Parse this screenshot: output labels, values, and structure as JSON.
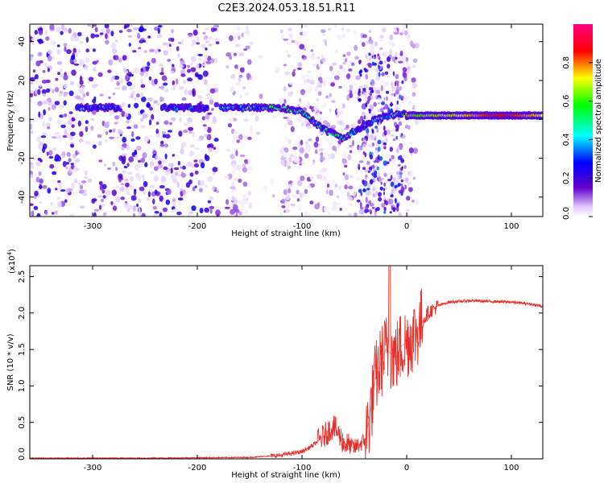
{
  "figure_title": "C2E3.2024.053.18.51.R11",
  "chart_data": [
    {
      "type": "heatmap",
      "title": "",
      "xlabel": "Height of straight line (km)",
      "ylabel": "Frequency (Hz)",
      "xlim": [
        -360,
        130
      ],
      "ylim": [
        -50,
        49
      ],
      "xticks": [
        -300,
        -200,
        -100,
        0,
        100
      ],
      "yticks": [
        -40,
        -20,
        0,
        20,
        40
      ],
      "colorbar": {
        "label": "Normalized spectral amplitude",
        "range": [
          0.0,
          1.0
        ],
        "ticks": [
          0.0,
          0.2,
          0.4,
          0.6,
          0.8
        ],
        "colors": [
          "#ffffff",
          "#6600cc",
          "#0000ff",
          "#00ffff",
          "#00ff00",
          "#ffff00",
          "#ff0000",
          "#ff0080"
        ]
      },
      "ridge": {
        "x": [
          -300,
          -280,
          -230,
          -200,
          -170,
          -145,
          -120,
          -100,
          -80,
          -60,
          -50,
          -45,
          -30,
          -15,
          -5,
          0,
          20,
          50,
          80,
          100,
          130
        ],
        "freq": [
          6,
          6,
          6,
          6,
          6,
          6,
          6,
          4,
          -5,
          -10,
          -6,
          -5,
          0,
          2,
          3,
          2,
          2,
          2,
          2,
          2,
          2
        ],
        "amplitude": [
          0.35,
          0.3,
          0.3,
          0.3,
          0.35,
          0.45,
          0.55,
          0.5,
          0.45,
          0.55,
          0.4,
          0.3,
          0.35,
          0.45,
          0.5,
          0.6,
          0.65,
          0.7,
          0.85,
          0.85,
          0.7
        ]
      }
    },
    {
      "type": "line",
      "title": "",
      "xlabel": "Height of straight line (km)",
      "ylabel": "SNR (10 * v/v)",
      "y_multiplier": "(x10",
      "y_multiplier_exp": "4",
      "y_multiplier_close": ")",
      "xlim": [
        -360,
        130
      ],
      "ylim": [
        0,
        2.65
      ],
      "xticks": [
        -300,
        -200,
        -100,
        0,
        100
      ],
      "yticks": [
        "0.0",
        "0.5",
        "1.0",
        "1.5",
        "2.0",
        "2.5"
      ],
      "color": "#e8302a",
      "series": [
        {
          "x": [
            -360,
            -250,
            -150,
            -120,
            -100,
            -90,
            -80,
            -70,
            -60,
            -50,
            -40,
            -35,
            -30,
            -25,
            -20,
            -15,
            -10,
            -5,
            0,
            10,
            20,
            30,
            40,
            60,
            80,
            100,
            120,
            130
          ],
          "values": [
            0.01,
            0.01,
            0.02,
            0.05,
            0.1,
            0.18,
            0.3,
            0.45,
            0.22,
            0.15,
            0.25,
            0.6,
            1.1,
            1.3,
            1.5,
            1.45,
            1.4,
            1.55,
            1.6,
            1.75,
            2.0,
            2.1,
            2.15,
            2.17,
            2.16,
            2.15,
            2.12,
            2.09
          ]
        }
      ]
    }
  ]
}
